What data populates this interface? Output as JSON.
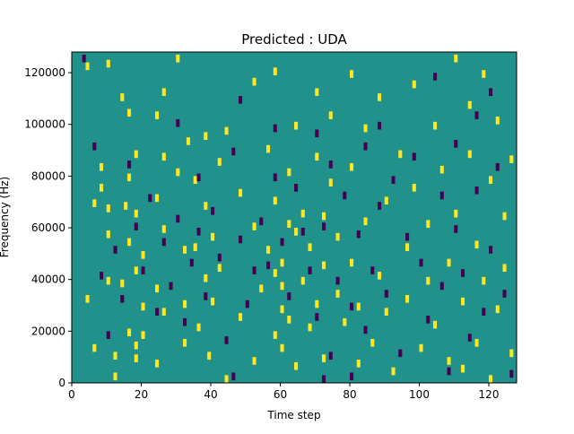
{
  "chart_data": {
    "type": "heatmap",
    "title": "Predicted : UDA",
    "xlabel": "Time step",
    "ylabel": "Frequency (Hz)",
    "xlim": [
      0,
      128
    ],
    "ylim": [
      0,
      128000
    ],
    "x_ticks": [
      0,
      20,
      40,
      60,
      80,
      100,
      120
    ],
    "x_tick_labels": [
      "0",
      "20",
      "40",
      "60",
      "80",
      "100",
      "120"
    ],
    "y_ticks": [
      0,
      20000,
      40000,
      60000,
      80000,
      100000,
      120000
    ],
    "y_tick_labels": [
      "0",
      "20000",
      "40000",
      "60000",
      "80000",
      "100000",
      "120000"
    ],
    "n_time_steps": 128,
    "n_frequency_bins": 128,
    "colormap": "viridis",
    "colors": {
      "background": "#21918c",
      "high": "#fde725",
      "low": "#440154"
    },
    "yellow_cells_note_free": true,
    "yellow_cells": [
      [
        4,
        123
      ],
      [
        4,
        33
      ],
      [
        6,
        70
      ],
      [
        6,
        14
      ],
      [
        8,
        84
      ],
      [
        8,
        76
      ],
      [
        10,
        124
      ],
      [
        10,
        68
      ],
      [
        10,
        58
      ],
      [
        10,
        40
      ],
      [
        12,
        3
      ],
      [
        12,
        11
      ],
      [
        14,
        39
      ],
      [
        14,
        111
      ],
      [
        15,
        69
      ],
      [
        16,
        105
      ],
      [
        16,
        80
      ],
      [
        16,
        55
      ],
      [
        16,
        20
      ],
      [
        18,
        44
      ],
      [
        18,
        66
      ],
      [
        18,
        89
      ],
      [
        18,
        15
      ],
      [
        18,
        10
      ],
      [
        20,
        50
      ],
      [
        20,
        30
      ],
      [
        20,
        19
      ],
      [
        24,
        104
      ],
      [
        24,
        72
      ],
      [
        24,
        37
      ],
      [
        24,
        8
      ],
      [
        26,
        113
      ],
      [
        26,
        88
      ],
      [
        26,
        60
      ],
      [
        26,
        28
      ],
      [
        30,
        126
      ],
      [
        30,
        82
      ],
      [
        32,
        52
      ],
      [
        32,
        31
      ],
      [
        32,
        16
      ],
      [
        33,
        94
      ],
      [
        35,
        79
      ],
      [
        35,
        53
      ],
      [
        36,
        22
      ],
      [
        38,
        96
      ],
      [
        38,
        69
      ],
      [
        38,
        41
      ],
      [
        39,
        11
      ],
      [
        40,
        57
      ],
      [
        40,
        32
      ],
      [
        42,
        86
      ],
      [
        42,
        45
      ],
      [
        44,
        2
      ],
      [
        44,
        98
      ],
      [
        48,
        26
      ],
      [
        48,
        74
      ],
      [
        52,
        117
      ],
      [
        52,
        61
      ],
      [
        52,
        9
      ],
      [
        54,
        37
      ],
      [
        56,
        91
      ],
      [
        56,
        52
      ],
      [
        58,
        121
      ],
      [
        58,
        71
      ],
      [
        58,
        43
      ],
      [
        58,
        19
      ],
      [
        60,
        47
      ],
      [
        60,
        38
      ],
      [
        60,
        29
      ],
      [
        60,
        14
      ],
      [
        62,
        82
      ],
      [
        62,
        62
      ],
      [
        62,
        25
      ],
      [
        64,
        100
      ],
      [
        64,
        59
      ],
      [
        64,
        7
      ],
      [
        66,
        40
      ],
      [
        66,
        66
      ],
      [
        68,
        53
      ],
      [
        68,
        22
      ],
      [
        70,
        113
      ],
      [
        70,
        88
      ],
      [
        70,
        31
      ],
      [
        72,
        65
      ],
      [
        72,
        46
      ],
      [
        72,
        10
      ],
      [
        74,
        104
      ],
      [
        74,
        78
      ],
      [
        76,
        57
      ],
      [
        76,
        35
      ],
      [
        78,
        24
      ],
      [
        80,
        120
      ],
      [
        80,
        84
      ],
      [
        80,
        47
      ],
      [
        82,
        30
      ],
      [
        82,
        8
      ],
      [
        84,
        99
      ],
      [
        84,
        63
      ],
      [
        86,
        16
      ],
      [
        88,
        111
      ],
      [
        88,
        42
      ],
      [
        90,
        71
      ],
      [
        90,
        28
      ],
      [
        92,
        5
      ],
      [
        94,
        89
      ],
      [
        96,
        53
      ],
      [
        96,
        33
      ],
      [
        98,
        116
      ],
      [
        98,
        76
      ],
      [
        100,
        14
      ],
      [
        102,
        62
      ],
      [
        102,
        40
      ],
      [
        104,
        100
      ],
      [
        104,
        23
      ],
      [
        106,
        83
      ],
      [
        108,
        47
      ],
      [
        108,
        9
      ],
      [
        110,
        126
      ],
      [
        110,
        66
      ],
      [
        112,
        32
      ],
      [
        112,
        6
      ],
      [
        114,
        108
      ],
      [
        114,
        89
      ],
      [
        116,
        54
      ],
      [
        116,
        16
      ],
      [
        118,
        120
      ],
      [
        118,
        40
      ],
      [
        120,
        79
      ],
      [
        120,
        2
      ],
      [
        122,
        102
      ],
      [
        122,
        29
      ],
      [
        124,
        65
      ],
      [
        124,
        45
      ],
      [
        126,
        87
      ],
      [
        126,
        12
      ]
    ],
    "purple_cells": [
      [
        3,
        126
      ],
      [
        6,
        92
      ],
      [
        8,
        42
      ],
      [
        10,
        19
      ],
      [
        12,
        52
      ],
      [
        14,
        33
      ],
      [
        16,
        85
      ],
      [
        18,
        61
      ],
      [
        20,
        44
      ],
      [
        22,
        72
      ],
      [
        24,
        28
      ],
      [
        26,
        55
      ],
      [
        28,
        38
      ],
      [
        30,
        101
      ],
      [
        30,
        64
      ],
      [
        32,
        24
      ],
      [
        34,
        47
      ],
      [
        36,
        80
      ],
      [
        36,
        59
      ],
      [
        38,
        34
      ],
      [
        40,
        67
      ],
      [
        42,
        49
      ],
      [
        44,
        17
      ],
      [
        46,
        90
      ],
      [
        46,
        3
      ],
      [
        48,
        110
      ],
      [
        48,
        56
      ],
      [
        50,
        31
      ],
      [
        52,
        44
      ],
      [
        54,
        63
      ],
      [
        56,
        46
      ],
      [
        58,
        80
      ],
      [
        58,
        99
      ],
      [
        60,
        55
      ],
      [
        62,
        34
      ],
      [
        64,
        76
      ],
      [
        66,
        59
      ],
      [
        68,
        44
      ],
      [
        70,
        97
      ],
      [
        70,
        26
      ],
      [
        72,
        61
      ],
      [
        72,
        2
      ],
      [
        74,
        11
      ],
      [
        74,
        85
      ],
      [
        76,
        40
      ],
      [
        78,
        73
      ],
      [
        80,
        30
      ],
      [
        80,
        3
      ],
      [
        82,
        58
      ],
      [
        84,
        92
      ],
      [
        84,
        21
      ],
      [
        86,
        44
      ],
      [
        88,
        100
      ],
      [
        88,
        69
      ],
      [
        90,
        35
      ],
      [
        92,
        79
      ],
      [
        94,
        12
      ],
      [
        96,
        57
      ],
      [
        98,
        88
      ],
      [
        100,
        47
      ],
      [
        102,
        25
      ],
      [
        104,
        119
      ],
      [
        106,
        73
      ],
      [
        106,
        38
      ],
      [
        108,
        5
      ],
      [
        110,
        60
      ],
      [
        110,
        93
      ],
      [
        112,
        43
      ],
      [
        114,
        18
      ],
      [
        116,
        104
      ],
      [
        116,
        75
      ],
      [
        118,
        28
      ],
      [
        120,
        113
      ],
      [
        120,
        52
      ],
      [
        122,
        84
      ],
      [
        124,
        35
      ],
      [
        126,
        4
      ]
    ]
  }
}
